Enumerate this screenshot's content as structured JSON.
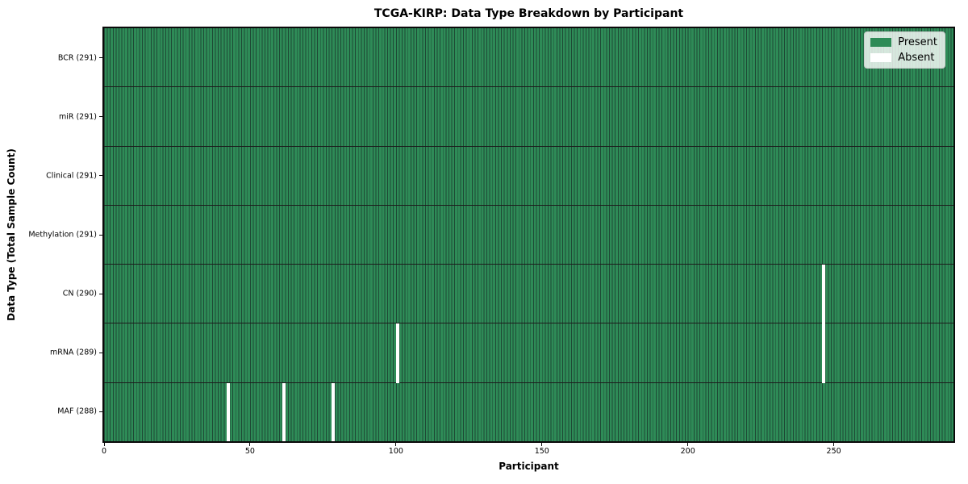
{
  "chart_data": {
    "type": "heatmap",
    "title": "TCGA-KIRP: Data Type Breakdown by Participant",
    "xlabel": "Participant",
    "ylabel": "Data Type (Total Sample Count)",
    "x_range": [
      0,
      291
    ],
    "n_participants": 291,
    "x_ticks": [
      0,
      50,
      100,
      150,
      200,
      250
    ],
    "grid": false,
    "legend": {
      "position": "upper right",
      "entries": [
        {
          "label": "Present",
          "color": "#2e8b57"
        },
        {
          "label": "Absent",
          "color": "#ffffff"
        }
      ]
    },
    "rows": [
      {
        "data_type": "BCR",
        "label": "BCR (291)",
        "present_count": 291,
        "absent_participants": []
      },
      {
        "data_type": "miR",
        "label": "miR (291)",
        "present_count": 291,
        "absent_participants": []
      },
      {
        "data_type": "Clinical",
        "label": "Clinical (291)",
        "present_count": 291,
        "absent_participants": []
      },
      {
        "data_type": "Methylation",
        "label": "Methylation (291)",
        "present_count": 291,
        "absent_participants": []
      },
      {
        "data_type": "CN",
        "label": "CN (290)",
        "present_count": 290,
        "absent_participants": [
          246
        ]
      },
      {
        "data_type": "mRNA",
        "label": "mRNA (289)",
        "present_count": 289,
        "absent_participants": [
          100,
          246
        ]
      },
      {
        "data_type": "MAF",
        "label": "MAF (288)",
        "present_count": 288,
        "absent_participants": [
          42,
          61,
          78
        ]
      }
    ],
    "colors": {
      "present": "#2e8b57",
      "absent": "#ffffff",
      "bar_edge": "#1e4935",
      "row_divider": "#1c1c1c",
      "axis": "#0a0a0a",
      "legend_edge": "#cccccc"
    }
  }
}
